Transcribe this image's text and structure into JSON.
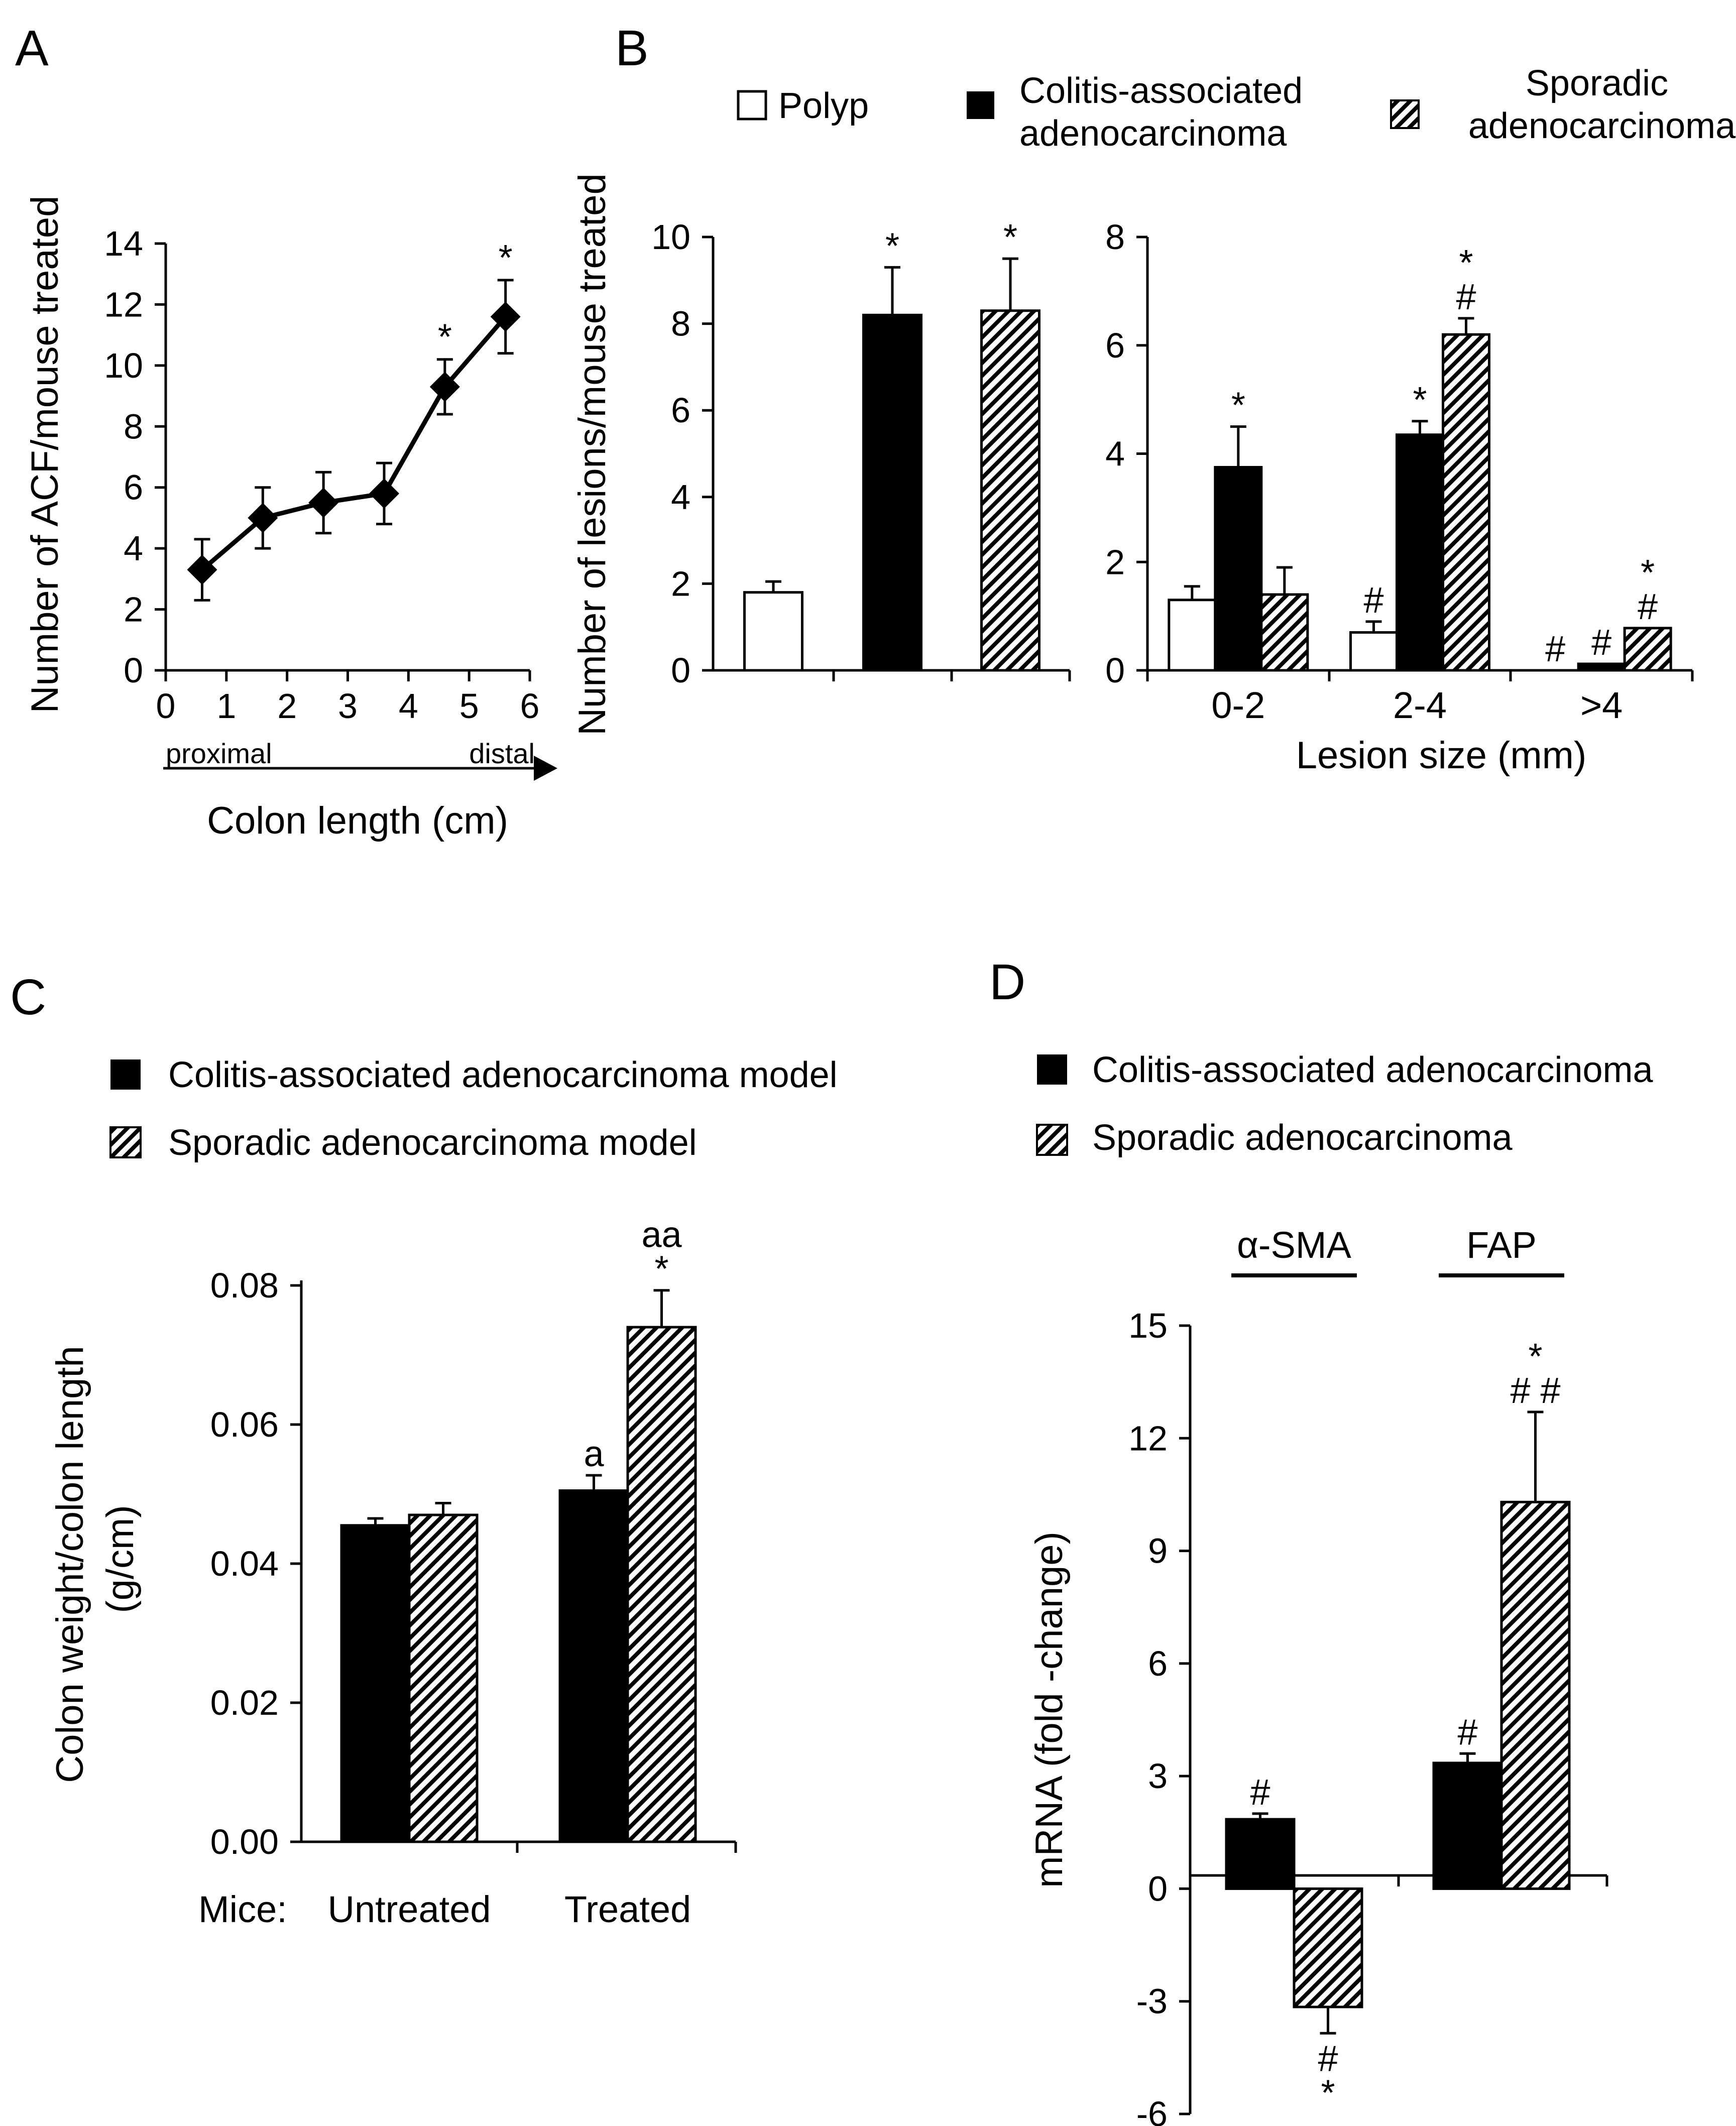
{
  "panels": {
    "a": "A",
    "b": "B",
    "c": "C",
    "d": "D"
  },
  "colors": {
    "solid": "#000000",
    "open": "#ffffff",
    "hatch": "#000000"
  },
  "chart_data": [
    {
      "id": "A",
      "type": "line",
      "ylabel": "Number of ACF/mouse treated",
      "xlabel": "Colon length (cm)",
      "arrow_start": "proximal",
      "arrow_end": "distal",
      "xlim": [
        0,
        6
      ],
      "ylim": [
        0,
        14
      ],
      "xticks": [
        "0",
        "1",
        "2",
        "3",
        "4",
        "5",
        "6"
      ],
      "yticks": [
        "0",
        "2",
        "4",
        "6",
        "8",
        "10",
        "12",
        "14"
      ],
      "x": [
        0.6,
        1.6,
        2.6,
        3.6,
        4.6,
        5.6
      ],
      "y": [
        3.3,
        5.0,
        5.5,
        5.8,
        9.3,
        11.6
      ],
      "err": [
        1.0,
        1.0,
        1.0,
        1.0,
        0.9,
        1.2
      ],
      "sig": [
        "",
        "",
        "",
        "",
        "*",
        "*"
      ],
      "marker": "diamond"
    },
    {
      "id": "B",
      "type": "bar",
      "ylabel": "Number of lesions/mouse treated",
      "legend": [
        "Polyp",
        "Colitis-associated adenocarcinoma",
        "Sporadic adenocarcinoma"
      ],
      "legend_split": {
        "caa": [
          "Colitis-associated",
          "adenocarcinoma"
        ],
        "spa": [
          "Sporadic",
          "adenocarcinoma"
        ]
      },
      "left": {
        "ylim": [
          0,
          10
        ],
        "yticks": [
          "0",
          "2",
          "4",
          "6",
          "8",
          "10"
        ],
        "values": [
          1.8,
          8.2,
          8.3
        ],
        "err": [
          0.25,
          1.1,
          1.2
        ],
        "sig": [
          "",
          "*",
          "*"
        ]
      },
      "right": {
        "xlabel": "Lesion size (mm)",
        "ylim": [
          0,
          8
        ],
        "yticks": [
          "0",
          "2",
          "4",
          "6",
          "8"
        ],
        "categories": [
          "0-2",
          "2-4",
          ">4"
        ],
        "series": [
          {
            "name": "Polyp",
            "values": [
              1.3,
              0.7,
              0.0
            ],
            "err": [
              0.25,
              0.2,
              0.0
            ],
            "sig": [
              "",
              "#",
              "#"
            ]
          },
          {
            "name": "Colitis-associated adenocarcinoma",
            "values": [
              3.75,
              4.35,
              0.12
            ],
            "err": [
              0.75,
              0.25,
              0.0
            ],
            "sig": [
              "*",
              "*",
              "#"
            ]
          },
          {
            "name": "Sporadic adenocarcinoma",
            "values": [
              1.4,
              6.2,
              0.78
            ],
            "err": [
              0.5,
              0.3,
              0.0
            ],
            "sig": [
              "",
              "*\n#",
              "*\n#"
            ]
          }
        ]
      }
    },
    {
      "id": "C",
      "type": "bar",
      "ylabel": "Colon weight/colon length",
      "ylabel2": "(g/cm)",
      "legend": [
        "Colitis-associated adenocarcinoma model",
        "Sporadic adenocarcinoma model"
      ],
      "x_prefix": "Mice:",
      "categories": [
        "Untreated",
        "Treated"
      ],
      "ylim": [
        0,
        0.08
      ],
      "yticks": [
        "0.00",
        "0.02",
        "0.04",
        "0.06",
        "0.08"
      ],
      "series": [
        {
          "name": "Colitis-associated adenocarcinoma model",
          "values": [
            0.0455,
            0.0505
          ],
          "err": [
            0.001,
            0.0022
          ],
          "sig": [
            "",
            "a"
          ]
        },
        {
          "name": "Sporadic adenocarcinoma model",
          "values": [
            0.047,
            0.074
          ],
          "err": [
            0.0017,
            0.0053
          ],
          "sig": [
            "",
            "aa\n*"
          ]
        }
      ]
    },
    {
      "id": "D",
      "type": "bar",
      "ylabel": "mRNA (fold -change)",
      "legend": [
        "Colitis-associated adenocarcinoma",
        "Sporadic adenocarcinoma"
      ],
      "categories": [
        "α-SMA",
        "FAP"
      ],
      "ylim": [
        -6,
        15
      ],
      "yticks": [
        "-6",
        "-3",
        "0",
        "3",
        "6",
        "9",
        "12",
        "15"
      ],
      "series": [
        {
          "name": "Colitis-associated adenocarcinoma",
          "values": [
            1.85,
            3.35
          ],
          "err": [
            0.15,
            0.25
          ],
          "sig": [
            "#",
            "#"
          ]
        },
        {
          "name": "Sporadic adenocarcinoma",
          "values": [
            -3.15,
            10.3
          ],
          "err": [
            0.7,
            2.4
          ],
          "sig": [
            "#\n*",
            "*\n# #"
          ]
        }
      ]
    }
  ]
}
